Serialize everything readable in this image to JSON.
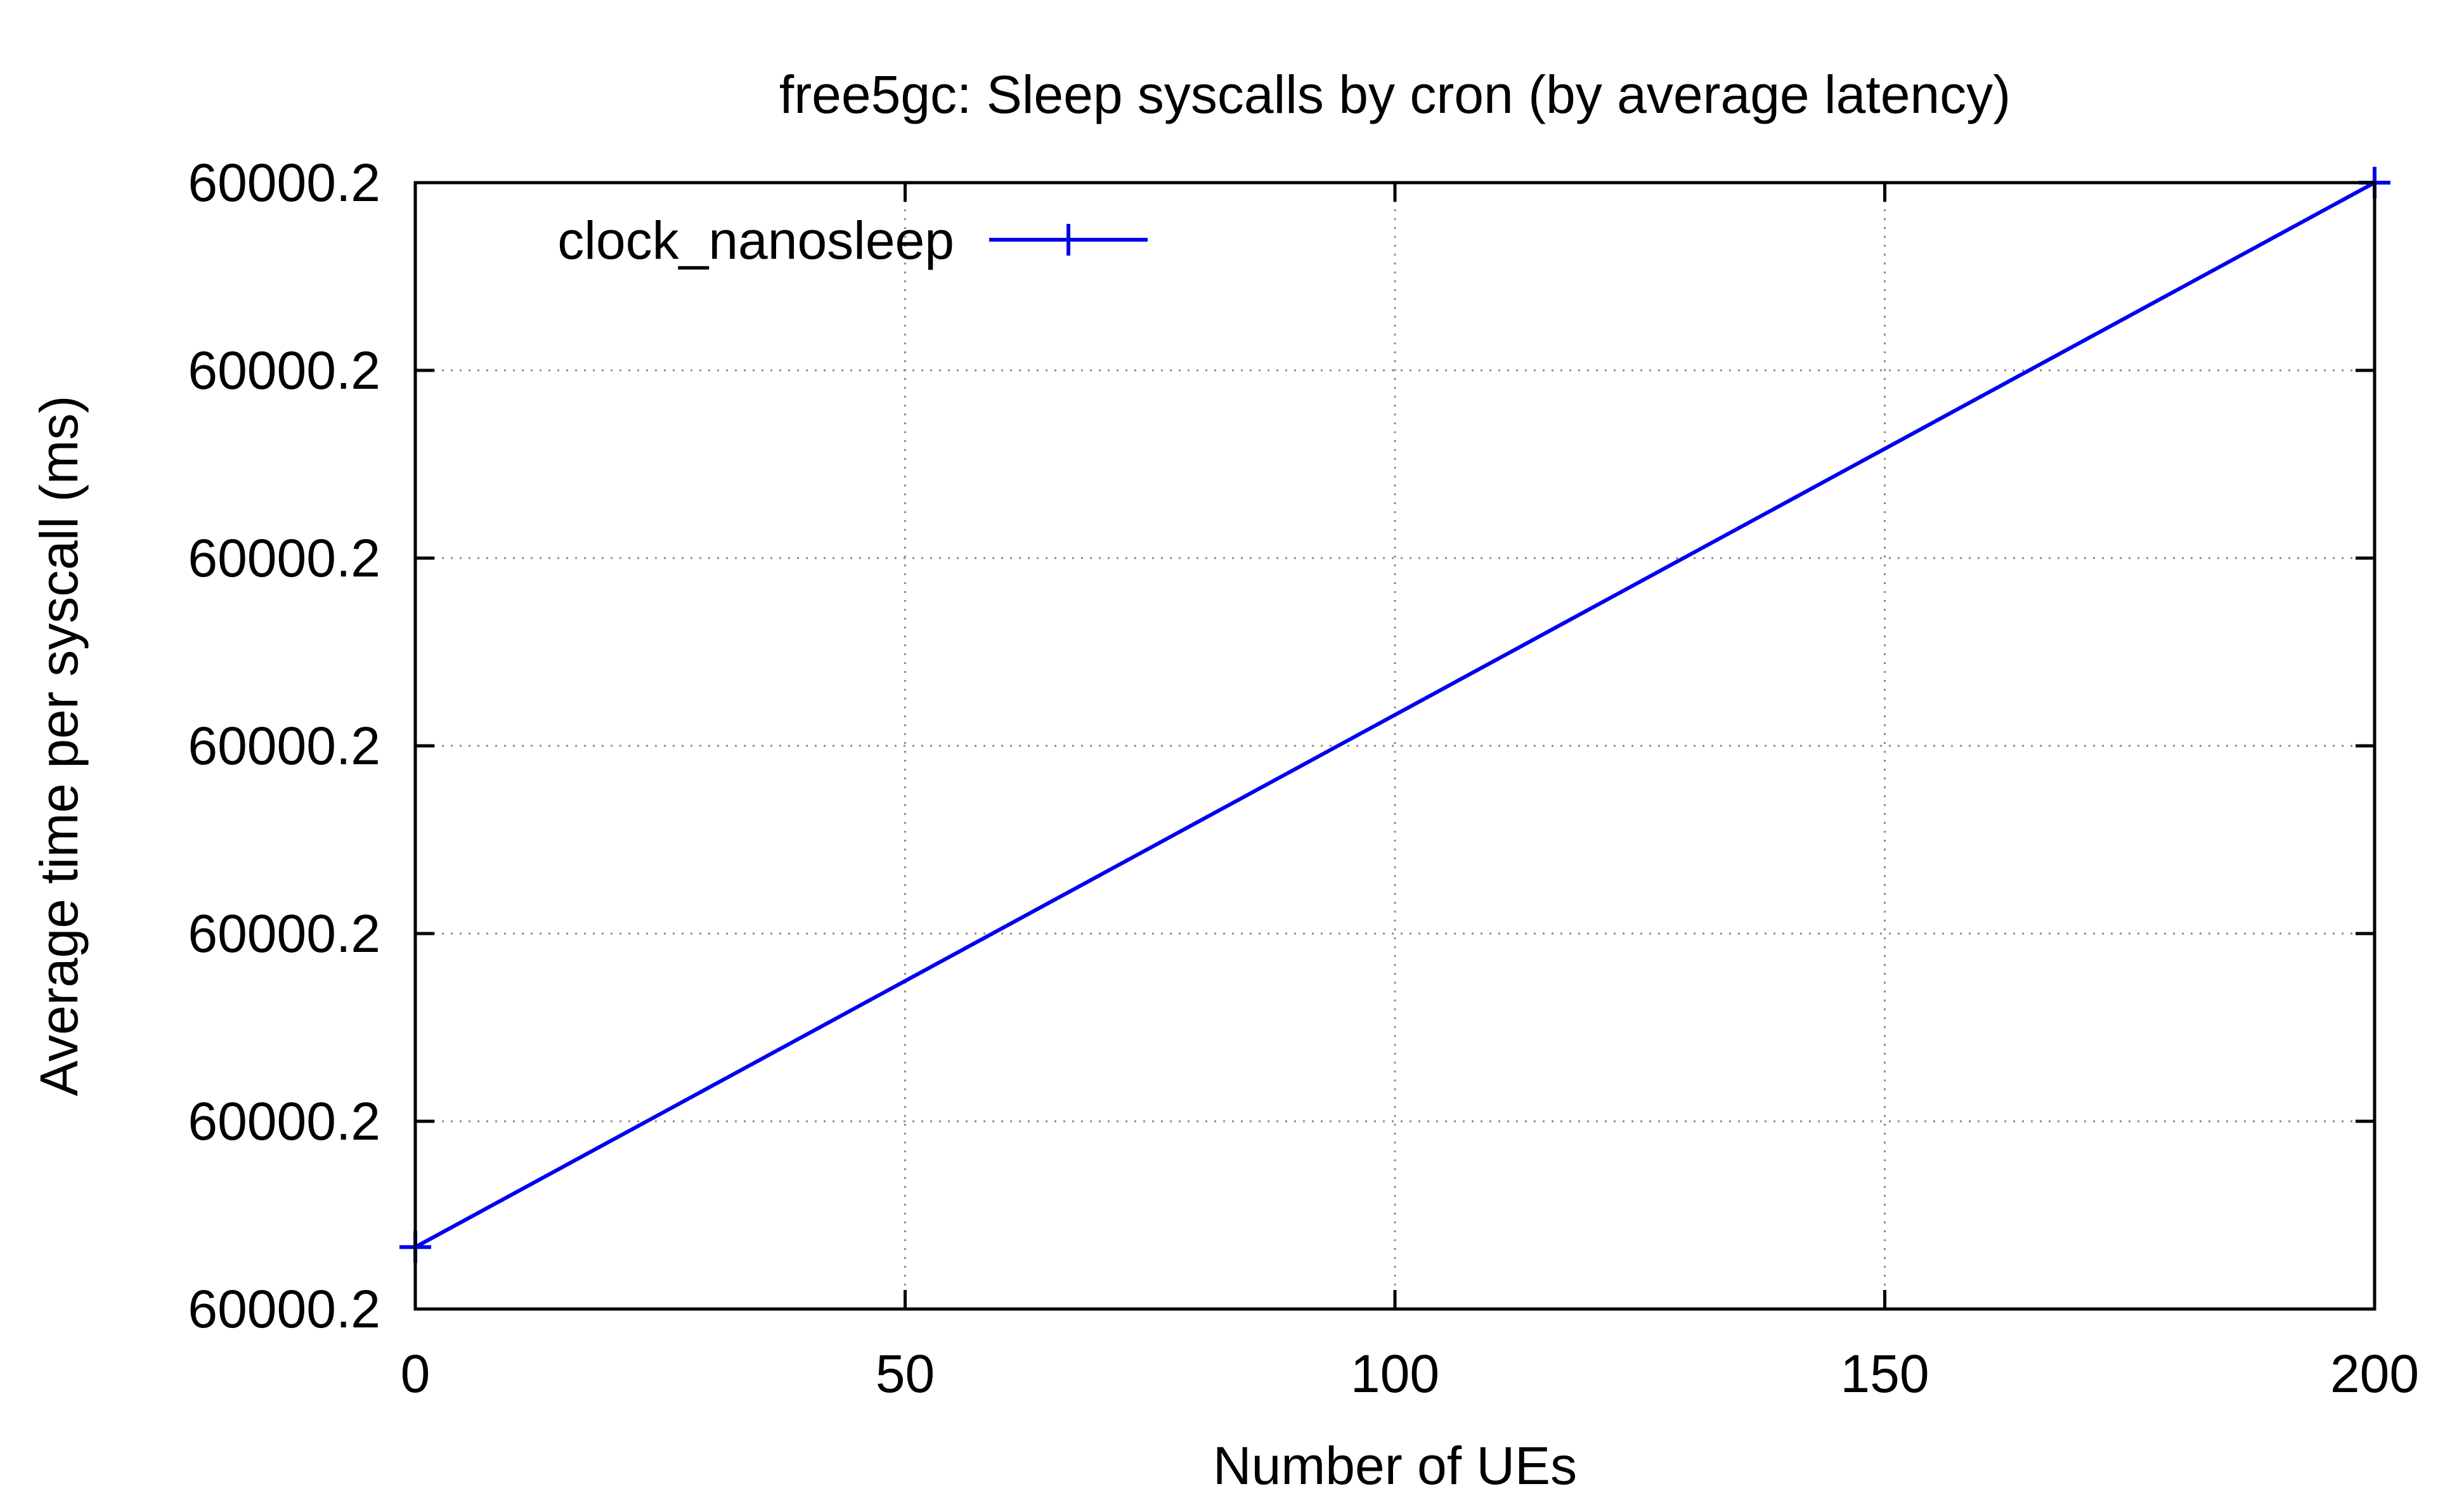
{
  "chart_data": {
    "type": "line",
    "title": "free5gc: Sleep syscalls by cron (by average latency)",
    "xlabel": "Number of UEs",
    "ylabel": "Average time per syscall (ms)",
    "xlim": [
      0,
      200
    ],
    "x_ticks": [
      0,
      50,
      100,
      150,
      200
    ],
    "x_tick_labels": [
      "0",
      "50",
      "100",
      "150",
      "200"
    ],
    "ylim": [
      0,
      6
    ],
    "y_ticks": [
      0,
      1,
      2,
      3,
      4,
      5,
      6
    ],
    "y_tick_labels": [
      "60000.2",
      "60000.2",
      "60000.2",
      "60000.2",
      "60000.2",
      "60000.2",
      "60000.2"
    ],
    "grid": true,
    "legend_position": "top-left",
    "series": [
      {
        "name": "clock_nanosleep",
        "color": "#0000ee",
        "marker": "plus",
        "x": [
          0,
          200
        ],
        "y": [
          0.33,
          6.0
        ]
      }
    ]
  }
}
